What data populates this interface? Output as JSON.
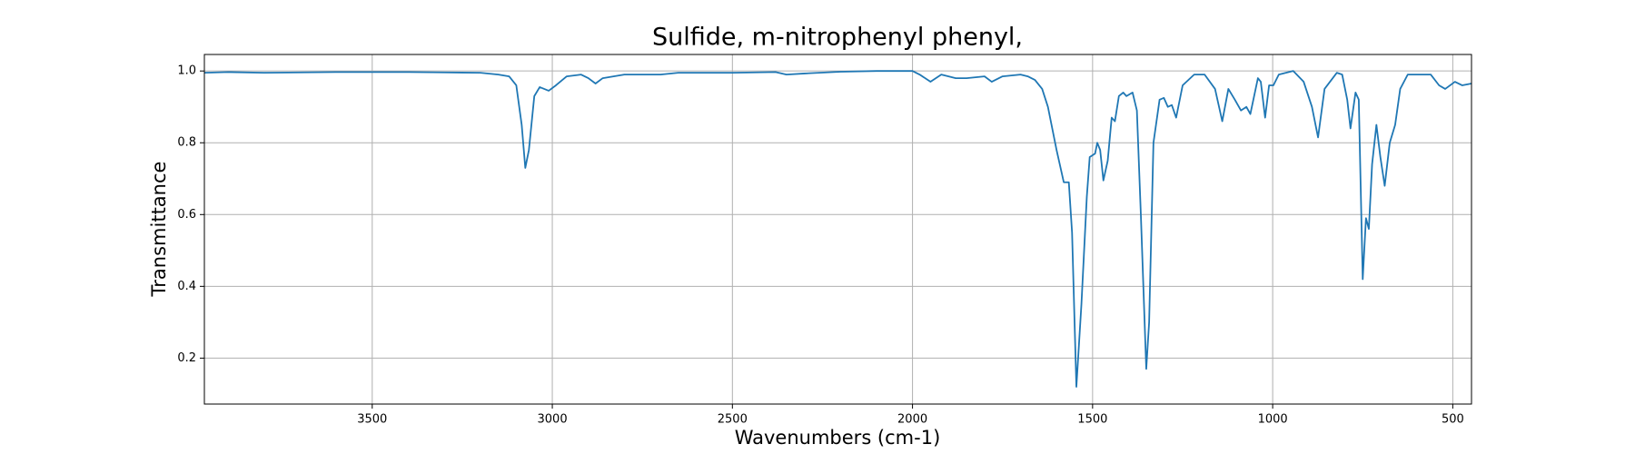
{
  "chart_data": {
    "type": "line",
    "title": "Sulfide, m-nitrophenyl phenyl,",
    "xlabel": "Wavenumbers (cm-1)",
    "ylabel": "Transmittance",
    "color": "#1f77b4",
    "grid": true,
    "xlim": [
      3966,
      448
    ],
    "ylim": [
      0.072,
      1.046
    ],
    "xticks": [
      3500,
      3000,
      2500,
      2000,
      1500,
      1000,
      500
    ],
    "yticks": [
      0.2,
      0.4,
      0.6,
      0.8,
      {
        "value": 1,
        "label": "1.0"
      }
    ],
    "x": [
      3966,
      3900,
      3800,
      3700,
      3600,
      3500,
      3400,
      3300,
      3200,
      3150,
      3120,
      3100,
      3085,
      3075,
      3065,
      3050,
      3035,
      3010,
      2990,
      2960,
      2920,
      2900,
      2880,
      2860,
      2800,
      2700,
      2650,
      2500,
      2380,
      2350,
      2300,
      2200,
      2100,
      2000,
      1980,
      1950,
      1920,
      1880,
      1850,
      1800,
      1780,
      1750,
      1700,
      1680,
      1660,
      1640,
      1624,
      1600,
      1580,
      1566,
      1557,
      1545,
      1531,
      1516,
      1508,
      1493,
      1487,
      1479,
      1470,
      1458,
      1447,
      1438,
      1427,
      1415,
      1406,
      1389,
      1377,
      1366,
      1351,
      1343,
      1331,
      1314,
      1302,
      1291,
      1280,
      1268,
      1250,
      1218,
      1189,
      1160,
      1140,
      1123,
      1105,
      1088,
      1073,
      1062,
      1041,
      1033,
      1021,
      1010,
      998,
      983,
      943,
      914,
      891,
      874,
      856,
      822,
      807,
      793,
      784,
      770,
      761,
      750,
      741,
      733,
      724,
      712,
      701,
      689,
      675,
      660,
      646,
      625,
      596,
      561,
      538,
      521,
      494,
      474,
      448
    ],
    "values": [
      0.995,
      0.997,
      0.995,
      0.996,
      0.997,
      0.997,
      0.997,
      0.996,
      0.995,
      0.99,
      0.985,
      0.96,
      0.85,
      0.73,
      0.78,
      0.93,
      0.955,
      0.945,
      0.96,
      0.985,
      0.99,
      0.98,
      0.965,
      0.98,
      0.99,
      0.99,
      0.995,
      0.995,
      0.997,
      0.99,
      0.993,
      0.998,
      1.0,
      1.0,
      0.99,
      0.97,
      0.99,
      0.98,
      0.98,
      0.985,
      0.97,
      0.985,
      0.99,
      0.985,
      0.975,
      0.95,
      0.9,
      0.78,
      0.69,
      0.69,
      0.55,
      0.12,
      0.35,
      0.65,
      0.76,
      0.77,
      0.8,
      0.78,
      0.695,
      0.75,
      0.87,
      0.86,
      0.93,
      0.94,
      0.93,
      0.94,
      0.89,
      0.6,
      0.17,
      0.3,
      0.8,
      0.92,
      0.925,
      0.9,
      0.905,
      0.87,
      0.96,
      0.99,
      0.99,
      0.95,
      0.86,
      0.95,
      0.92,
      0.89,
      0.9,
      0.88,
      0.98,
      0.97,
      0.87,
      0.96,
      0.96,
      0.99,
      1.0,
      0.97,
      0.9,
      0.815,
      0.95,
      0.995,
      0.99,
      0.92,
      0.84,
      0.94,
      0.92,
      0.42,
      0.59,
      0.56,
      0.74,
      0.85,
      0.76,
      0.68,
      0.8,
      0.85,
      0.95,
      0.99,
      0.99,
      0.99,
      0.96,
      0.95,
      0.97,
      0.96,
      0.965
    ]
  }
}
